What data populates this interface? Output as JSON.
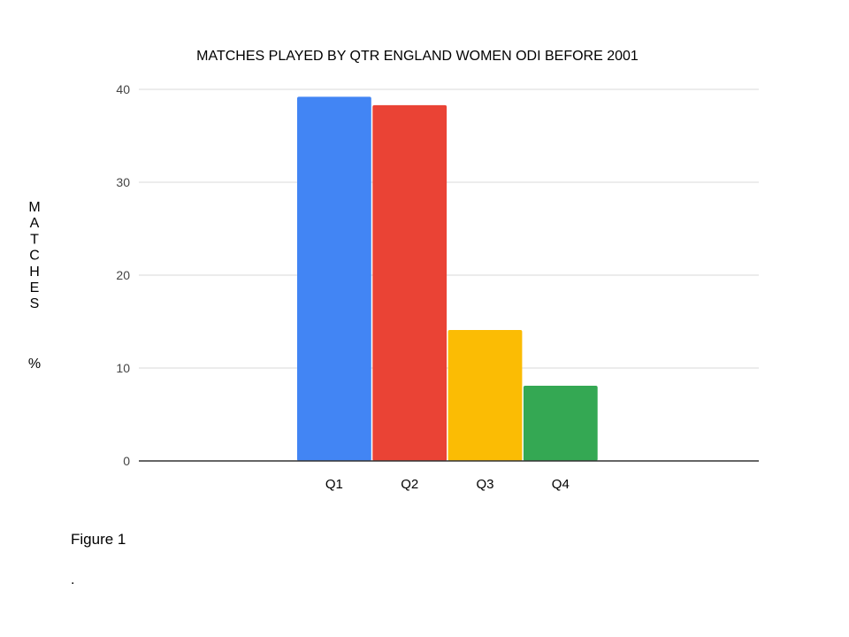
{
  "chart_data": {
    "type": "bar",
    "title": "MATCHES PLAYED BY QTR ENGLAND WOMEN ODI BEFORE 2001",
    "categories": [
      "Q1",
      "Q2",
      "Q3",
      "Q4"
    ],
    "values": [
      39.2,
      38.3,
      14.1,
      8.1
    ],
    "ylabel": "MATCHES %",
    "xlabel": "",
    "ylim": [
      0,
      40
    ],
    "yticks": [
      "0",
      "10",
      "20",
      "30",
      "40"
    ],
    "bar_colors": [
      "#4285f4",
      "#ea4335",
      "#fbbc04",
      "#34a853"
    ],
    "grid": true,
    "legend": "none"
  },
  "caption": "Figure 1",
  "footnote": "."
}
